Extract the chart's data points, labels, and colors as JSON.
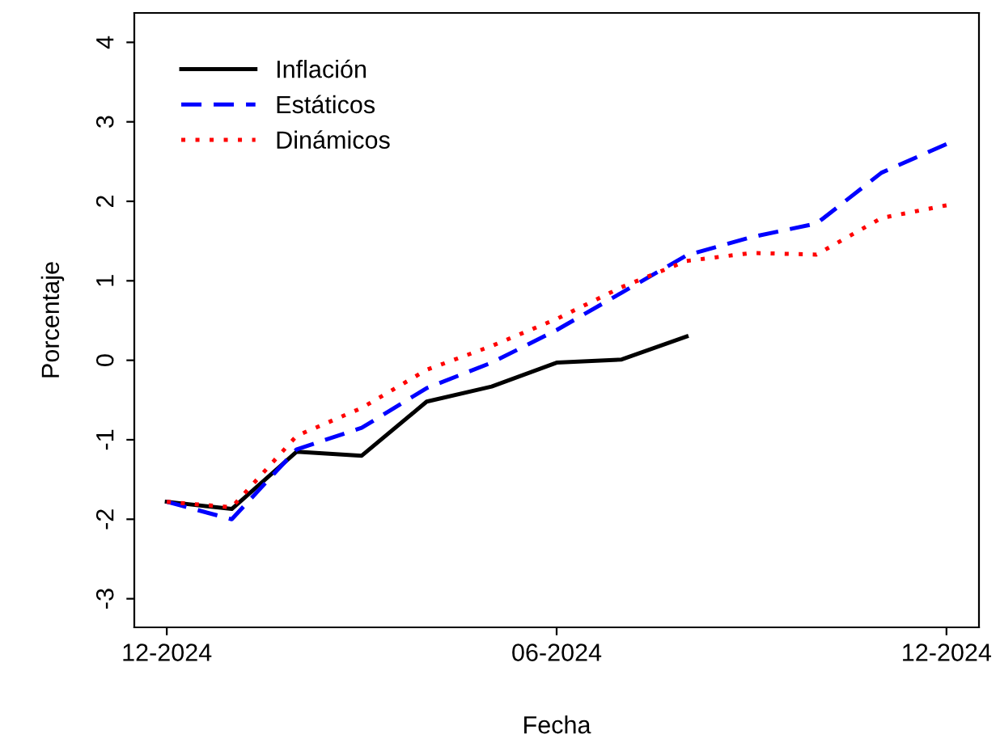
{
  "chart_data": {
    "type": "line",
    "xlabel": "Fecha",
    "ylabel": "Porcentaje",
    "categories": [
      "12-2024",
      null,
      null,
      null,
      null,
      null,
      "06-2024",
      null,
      null,
      null,
      null,
      null,
      "12-2024"
    ],
    "series": [
      {
        "name": "Inflación",
        "color": "#000000",
        "line_style": "solid",
        "values": [
          -1.78,
          -1.87,
          -1.15,
          -1.2,
          -0.52,
          -0.33,
          -0.03,
          0.01,
          0.3,
          null,
          null,
          null,
          null
        ]
      },
      {
        "name": "Estáticos",
        "color": "#0000ff",
        "line_style": "dashed",
        "values": [
          -1.78,
          -2.0,
          -1.12,
          -0.85,
          -0.35,
          -0.03,
          0.38,
          0.85,
          1.32,
          1.55,
          1.72,
          2.36,
          2.72
        ]
      },
      {
        "name": "Dinámicos",
        "color": "#ff0000",
        "line_style": "dotted",
        "values": [
          -1.78,
          -1.85,
          -0.95,
          -0.6,
          -0.12,
          0.18,
          0.52,
          0.92,
          1.25,
          1.35,
          1.33,
          1.79,
          1.95
        ]
      }
    ],
    "ylim": [
      -3.36,
      4.37
    ],
    "yticks": [
      -3,
      -2,
      -1,
      0,
      1,
      2,
      3,
      4
    ],
    "grid": false,
    "legend": "top left"
  }
}
